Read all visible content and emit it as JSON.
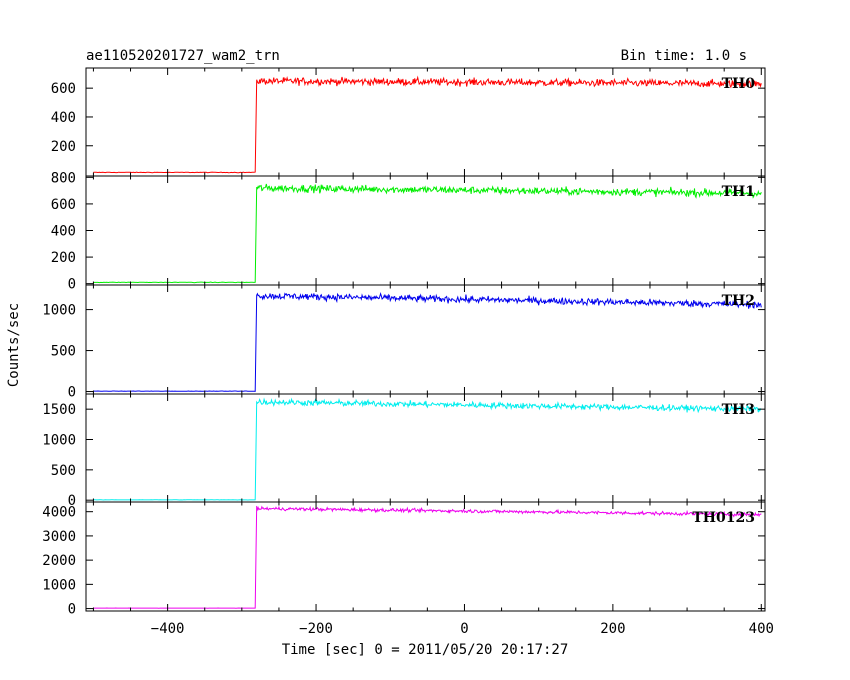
{
  "header": {
    "title": "ae110520201727_wam2_trn",
    "bin_time": "Bin time: 1.0 s"
  },
  "chart_data": {
    "type": "line",
    "title": "ae110520201727_wam2_trn",
    "xlabel": "Time [sec] 0 = 2011/05/20 20:17:27",
    "ylabel": "Counts/sec",
    "xlim": [
      -510,
      405
    ],
    "x_ticks": [
      -400,
      -200,
      0,
      200,
      400
    ],
    "trigger_time": -280,
    "time_start": -500,
    "time_end": 400,
    "panels": [
      {
        "name": "TH0",
        "color": "#ff0000",
        "ylim": [
          -10,
          740
        ],
        "y_ticks": [
          200,
          400,
          600
        ],
        "y_tick_labels": [
          "200",
          "400",
          "600"
        ],
        "pre_level": 15,
        "post_start": 650,
        "post_end": 630,
        "noise": 18
      },
      {
        "name": "TH1",
        "color": "#00ee00",
        "ylim": [
          -10,
          810
        ],
        "y_ticks": [
          0,
          200,
          400,
          600,
          800
        ],
        "y_tick_labels": [
          "0",
          "200",
          "400",
          "600",
          "800"
        ],
        "pre_level": 10,
        "post_start": 720,
        "post_end": 680,
        "noise": 20
      },
      {
        "name": "TH2",
        "color": "#0000ee",
        "ylim": [
          -30,
          1300
        ],
        "y_ticks": [
          0,
          500,
          1000
        ],
        "y_tick_labels": [
          "0",
          "500",
          "1000"
        ],
        "pre_level": 5,
        "post_start": 1170,
        "post_end": 1060,
        "noise": 30
      },
      {
        "name": "TH3",
        "color": "#00eeee",
        "ylim": [
          -30,
          1750
        ],
        "y_ticks": [
          0,
          500,
          1000,
          1500
        ],
        "y_tick_labels": [
          "0",
          "500",
          "1000",
          "1500"
        ],
        "pre_level": 5,
        "post_start": 1620,
        "post_end": 1500,
        "noise": 35
      },
      {
        "name": "TH0123",
        "color": "#ee00ee",
        "ylim": [
          -100,
          4400
        ],
        "y_ticks": [
          0,
          1000,
          2000,
          3000,
          4000
        ],
        "y_tick_labels": [
          "0",
          "1000",
          "2000",
          "3000",
          "4000"
        ],
        "pre_level": 20,
        "post_start": 4130,
        "post_end": 3880,
        "noise": 50
      }
    ]
  }
}
